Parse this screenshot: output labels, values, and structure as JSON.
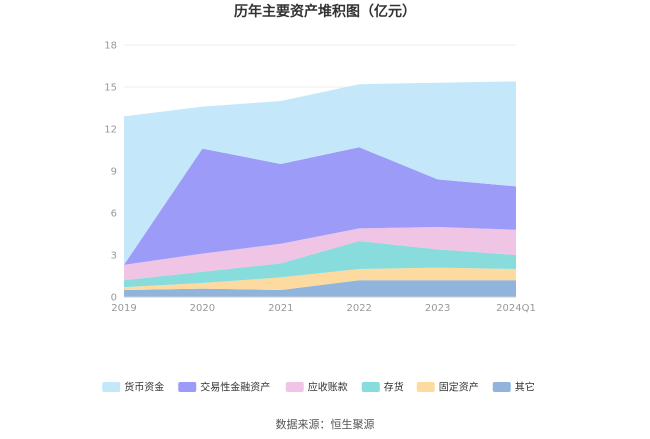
{
  "chart_data": {
    "type": "area",
    "stacked": true,
    "title": "历年主要资产堆积图（亿元）",
    "categories": [
      "2019",
      "2020",
      "2021",
      "2022",
      "2023",
      "2024Q1"
    ],
    "y_ticks": [
      "0",
      "3",
      "6",
      "9",
      "12",
      "15",
      "18"
    ],
    "ylim": [
      0,
      18
    ],
    "grid": true,
    "legend_position": "bottom",
    "series": [
      {
        "name": "其它",
        "color": "#91b4dc",
        "values": [
          0.5,
          0.6,
          0.5,
          1.2,
          1.2,
          1.2
        ]
      },
      {
        "name": "固定资产",
        "color": "#fddba0",
        "values": [
          0.2,
          0.4,
          0.9,
          0.8,
          0.9,
          0.8
        ]
      },
      {
        "name": "存货",
        "color": "#88dcdc",
        "values": [
          0.5,
          0.8,
          1.0,
          2.0,
          1.3,
          1.0
        ]
      },
      {
        "name": "应收账款",
        "color": "#efc4e4",
        "values": [
          1.1,
          1.3,
          1.4,
          0.9,
          1.6,
          1.8
        ]
      },
      {
        "name": "交易性金融资产",
        "color": "#9c9cf8",
        "values": [
          0.0,
          7.5,
          5.7,
          5.8,
          3.4,
          3.1
        ]
      },
      {
        "name": "货币资金",
        "color": "#c4e8fa",
        "values": [
          10.6,
          3.0,
          4.5,
          4.5,
          6.9,
          7.5
        ]
      }
    ]
  },
  "source_text": "数据来源：恒生聚源"
}
